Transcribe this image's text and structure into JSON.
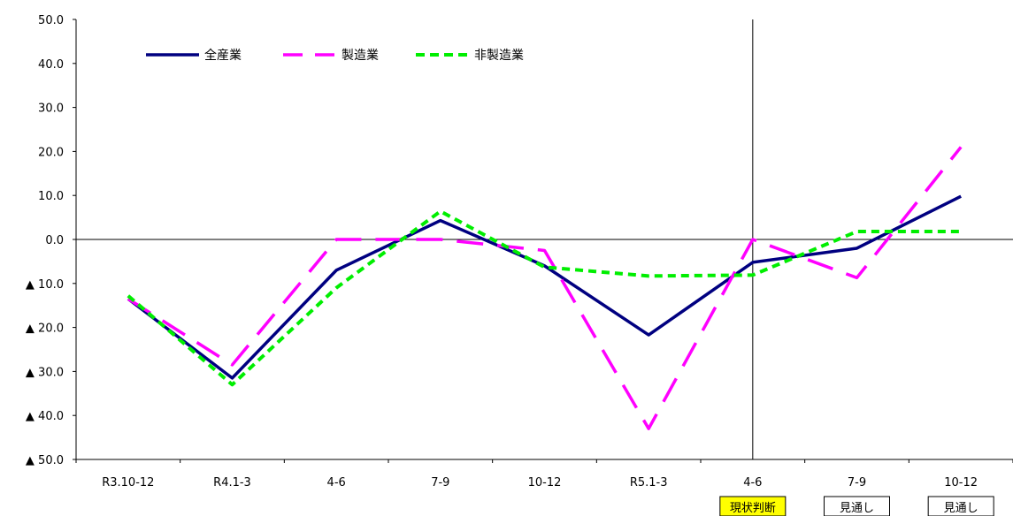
{
  "chart_data": {
    "type": "line",
    "title": "",
    "xlabel": "",
    "ylabel": "",
    "categories": [
      "R3.10-12",
      "R4.1-3",
      "4-6",
      "7-9",
      "10-12",
      "R5.1-3",
      "4-6",
      "7-9",
      "10-12"
    ],
    "category_badges": [
      "",
      "",
      "",
      "",
      "",
      "",
      "現状判断",
      "見通し",
      "見通し"
    ],
    "ylim": [
      -50,
      50
    ],
    "yticks": [
      50,
      40,
      30,
      20,
      10,
      0,
      -10,
      -20,
      -30,
      -40,
      -50
    ],
    "ytick_labels": [
      "50.0",
      "40.0",
      "30.0",
      "20.0",
      "10.0",
      "0.0",
      "▲ 10.0",
      "▲ 20.0",
      "▲ 30.0",
      "▲ 40.0",
      "▲ 50.0"
    ],
    "divider_after_index": 6,
    "legend_position": "top-left",
    "grid": false,
    "series": [
      {
        "name": "全産業",
        "color": "#000080",
        "style": "solid",
        "values": [
          -13.5,
          -31.5,
          -7.0,
          4.3,
          -6.0,
          -21.7,
          -5.2,
          -2.0,
          9.8
        ]
      },
      {
        "name": "製造業",
        "color": "#ff00ff",
        "style": "longdash",
        "values": [
          -13.5,
          -28.5,
          0.0,
          0.0,
          -2.5,
          -43.0,
          0.0,
          -8.7,
          21.0
        ]
      },
      {
        "name": "非製造業",
        "color": "#00ee00",
        "style": "shortdash",
        "values": [
          -12.8,
          -33.0,
          -11.0,
          6.4,
          -6.3,
          -8.3,
          -8.1,
          1.8,
          1.8
        ]
      }
    ],
    "badge_colors": {
      "highlight": "#ffff00",
      "normal": "#ffffff"
    }
  }
}
